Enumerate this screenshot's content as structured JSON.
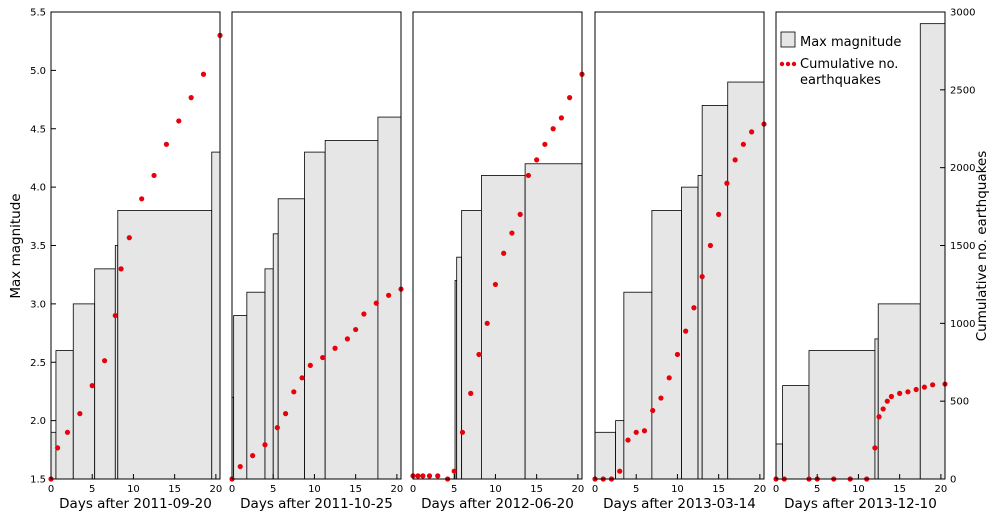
{
  "chart_data": {
    "type": "bar+scatter",
    "ylabel_left": "Max magnitude",
    "ylabel_right": "Cumulative no. earthquakes",
    "ylim_left": [
      1.5,
      5.5
    ],
    "ylim_right": [
      0,
      3000
    ],
    "yticks_left": [
      "1.5",
      "2.0",
      "2.5",
      "3.0",
      "3.5",
      "4.0",
      "4.5",
      "5.0",
      "5.5"
    ],
    "yticks_right": [
      "0",
      "500",
      "1000",
      "1500",
      "2000",
      "2500",
      "3000"
    ],
    "xlim": [
      0,
      20.5
    ],
    "xticks": [
      "0",
      "5",
      "10",
      "15",
      "20"
    ],
    "bar_color": "#e6e6e6",
    "point_color": "#e8000b",
    "legend": {
      "position": "top-right (last panel)",
      "entries": [
        "Max magnitude",
        "Cumulative no.",
        "earthquakes"
      ]
    },
    "panels": [
      {
        "xlabel": "Days after 2011-09-20",
        "bars": [
          [
            0,
            0.6,
            1.9
          ],
          [
            0.6,
            2.7,
            2.6
          ],
          [
            2.7,
            5.3,
            3.0
          ],
          [
            5.3,
            7.8,
            3.3
          ],
          [
            7.8,
            8.1,
            3.5
          ],
          [
            8.1,
            19.5,
            3.8
          ],
          [
            19.5,
            20.5,
            4.3
          ]
        ],
        "cumulative": [
          [
            0,
            0
          ],
          [
            0.8,
            200
          ],
          [
            2,
            300
          ],
          [
            3.5,
            420
          ],
          [
            5,
            600
          ],
          [
            6.5,
            760
          ],
          [
            7.8,
            1050
          ],
          [
            8.5,
            1350
          ],
          [
            9.5,
            1550
          ],
          [
            11,
            1800
          ],
          [
            12.5,
            1950
          ],
          [
            14,
            2150
          ],
          [
            15.5,
            2300
          ],
          [
            17,
            2450
          ],
          [
            18.5,
            2600
          ],
          [
            20.5,
            2850
          ]
        ]
      },
      {
        "xlabel": "Days after 2011-10-25",
        "bars": [
          [
            0,
            0.2,
            2.2
          ],
          [
            0.2,
            1.8,
            2.9
          ],
          [
            1.8,
            4,
            3.1
          ],
          [
            4,
            5,
            3.3
          ],
          [
            5,
            5.6,
            3.6
          ],
          [
            5.6,
            8.8,
            3.9
          ],
          [
            8.8,
            11.3,
            4.3
          ],
          [
            11.3,
            17.7,
            4.4
          ],
          [
            17.7,
            20.5,
            4.6
          ]
        ],
        "cumulative": [
          [
            0,
            0
          ],
          [
            1,
            80
          ],
          [
            2.5,
            150
          ],
          [
            4,
            220
          ],
          [
            5.5,
            330
          ],
          [
            6.5,
            420
          ],
          [
            7.5,
            560
          ],
          [
            8.5,
            650
          ],
          [
            9.5,
            730
          ],
          [
            11,
            780
          ],
          [
            12.5,
            840
          ],
          [
            14,
            900
          ],
          [
            15,
            960
          ],
          [
            16,
            1060
          ],
          [
            17.5,
            1130
          ],
          [
            19,
            1180
          ],
          [
            20.5,
            1220
          ]
        ]
      },
      {
        "xlabel": "Days after 2012-06-20",
        "bars": [
          [
            5.1,
            5.3,
            3.2
          ],
          [
            5.3,
            5.9,
            3.4
          ],
          [
            5.9,
            8.3,
            3.8
          ],
          [
            8.3,
            13.6,
            4.1
          ],
          [
            13.6,
            20.5,
            4.2
          ]
        ],
        "cumulative": [
          [
            0,
            20
          ],
          [
            0.6,
            20
          ],
          [
            1.2,
            20
          ],
          [
            2,
            20
          ],
          [
            3,
            20
          ],
          [
            4.2,
            0
          ],
          [
            5,
            50
          ],
          [
            6,
            300
          ],
          [
            7,
            550
          ],
          [
            8,
            800
          ],
          [
            9,
            1000
          ],
          [
            10,
            1250
          ],
          [
            11,
            1450
          ],
          [
            12,
            1580
          ],
          [
            13,
            1700
          ],
          [
            14,
            1950
          ],
          [
            15,
            2050
          ],
          [
            16,
            2150
          ],
          [
            17,
            2250
          ],
          [
            18,
            2320
          ],
          [
            19,
            2450
          ],
          [
            20.5,
            2600
          ]
        ]
      },
      {
        "xlabel": "Days after 2013-03-14",
        "bars": [
          [
            0,
            2.5,
            1.9
          ],
          [
            2.5,
            3.5,
            2.0
          ],
          [
            3.5,
            6.9,
            3.1
          ],
          [
            6.9,
            10.5,
            3.8
          ],
          [
            10.5,
            12.5,
            4.0
          ],
          [
            12.5,
            13,
            4.1
          ],
          [
            13,
            16.1,
            4.7
          ],
          [
            16.1,
            20.5,
            4.9
          ]
        ],
        "cumulative": [
          [
            0,
            0
          ],
          [
            1,
            0
          ],
          [
            2,
            0
          ],
          [
            3,
            50
          ],
          [
            4,
            250
          ],
          [
            5,
            300
          ],
          [
            6,
            310
          ],
          [
            7,
            440
          ],
          [
            8,
            520
          ],
          [
            9,
            650
          ],
          [
            10,
            800
          ],
          [
            11,
            950
          ],
          [
            12,
            1100
          ],
          [
            13,
            1300
          ],
          [
            14,
            1500
          ],
          [
            15,
            1700
          ],
          [
            16,
            1900
          ],
          [
            17,
            2050
          ],
          [
            18,
            2150
          ],
          [
            19,
            2230
          ],
          [
            20.5,
            2280
          ]
        ]
      },
      {
        "xlabel": "Days after 2013-12-10",
        "bars": [
          [
            0,
            0.8,
            1.8
          ],
          [
            0.8,
            4,
            2.3
          ],
          [
            4,
            12,
            2.6
          ],
          [
            12,
            12.4,
            2.7
          ],
          [
            12.4,
            17.5,
            3.0
          ],
          [
            17.5,
            20.5,
            5.4
          ]
        ],
        "cumulative": [
          [
            0,
            0
          ],
          [
            1,
            0
          ],
          [
            4,
            0
          ],
          [
            5,
            0
          ],
          [
            7,
            0
          ],
          [
            9,
            0
          ],
          [
            11,
            0
          ],
          [
            12,
            200
          ],
          [
            12.5,
            400
          ],
          [
            13,
            450
          ],
          [
            13.5,
            500
          ],
          [
            14,
            530
          ],
          [
            15,
            550
          ],
          [
            16,
            560
          ],
          [
            17,
            575
          ],
          [
            18,
            590
          ],
          [
            19,
            605
          ],
          [
            20.5,
            610
          ]
        ]
      }
    ]
  }
}
